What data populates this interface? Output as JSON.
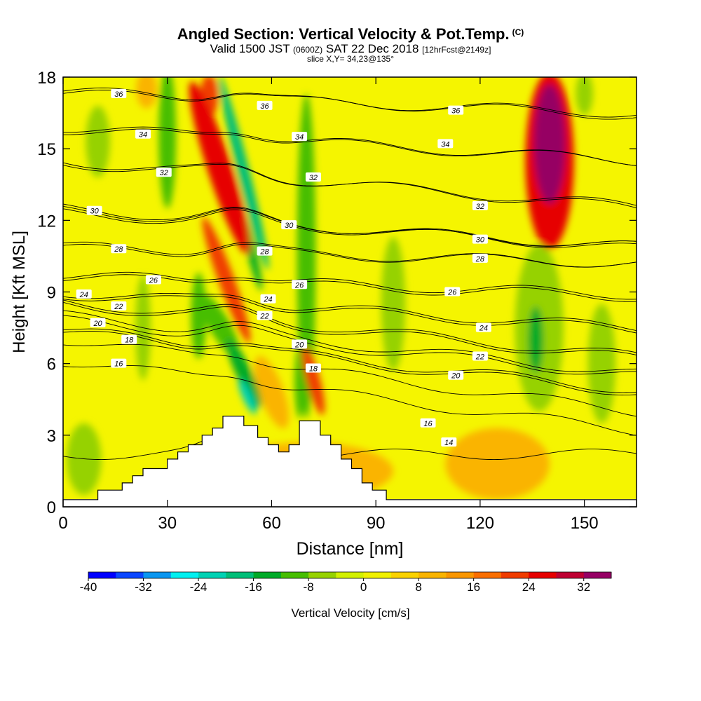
{
  "header": {
    "title": "Angled Section: Vertical Velocity & Pot.Temp.",
    "title_tag": "(C)",
    "valid_prefix": "Valid 1500 JST",
    "valid_zulu": "(0600Z)",
    "valid_date": "SAT 22 Dec 2018",
    "forecast": "[12hrFcst@2149z]",
    "slice": "slice X,Y= 34,23@135°"
  },
  "chart_data": {
    "type": "heatmap",
    "xlabel": "Distance [nm]",
    "ylabel": "Height [Kft MSL]",
    "xlim": [
      0,
      165
    ],
    "ylim": [
      0,
      18
    ],
    "x_ticks": [
      0,
      30,
      60,
      90,
      120,
      150
    ],
    "y_ticks": [
      0,
      3,
      6,
      9,
      12,
      15,
      18
    ],
    "grid": false,
    "field_label": "Vertical Velocity [cm/s]",
    "background_color": "#f5f500",
    "colorbar": {
      "min": -40,
      "max": 36,
      "step": 4,
      "tick_labels": [
        -40,
        -32,
        -24,
        -16,
        -8,
        0,
        8,
        16,
        24,
        32
      ],
      "colors": [
        "#0000ff",
        "#0a46ff",
        "#0a96f0",
        "#00f0f0",
        "#00d2b4",
        "#00be78",
        "#00aa28",
        "#46be00",
        "#96d200",
        "#d2f000",
        "#f0f000",
        "#fad200",
        "#fab400",
        "#fa9600",
        "#fa6e00",
        "#f03c00",
        "#e60000",
        "#be0032",
        "#960064"
      ]
    },
    "terrain_kft": [
      [
        0,
        0.3
      ],
      [
        10,
        0.3
      ],
      [
        10,
        0.7
      ],
      [
        17,
        0.7
      ],
      [
        17,
        1.0
      ],
      [
        20,
        1.0
      ],
      [
        20,
        1.3
      ],
      [
        23,
        1.3
      ],
      [
        23,
        1.6
      ],
      [
        30,
        1.6
      ],
      [
        30,
        2.0
      ],
      [
        33,
        2.0
      ],
      [
        33,
        2.3
      ],
      [
        36,
        2.3
      ],
      [
        36,
        2.6
      ],
      [
        40,
        2.6
      ],
      [
        40,
        3.0
      ],
      [
        43,
        3.0
      ],
      [
        43,
        3.3
      ],
      [
        46,
        3.3
      ],
      [
        46,
        3.8
      ],
      [
        52,
        3.8
      ],
      [
        52,
        3.4
      ],
      [
        56,
        3.4
      ],
      [
        56,
        2.9
      ],
      [
        59,
        2.9
      ],
      [
        59,
        2.6
      ],
      [
        62,
        2.6
      ],
      [
        62,
        2.3
      ],
      [
        65,
        2.3
      ],
      [
        65,
        2.6
      ],
      [
        68,
        2.6
      ],
      [
        68,
        3.6
      ],
      [
        74,
        3.6
      ],
      [
        74,
        3.0
      ],
      [
        77,
        3.0
      ],
      [
        77,
        2.6
      ],
      [
        80,
        2.6
      ],
      [
        80,
        2.0
      ],
      [
        83,
        2.0
      ],
      [
        83,
        1.6
      ],
      [
        86,
        1.6
      ],
      [
        86,
        1.0
      ],
      [
        89,
        1.0
      ],
      [
        89,
        0.7
      ],
      [
        93,
        0.7
      ],
      [
        93,
        0.3
      ],
      [
        165,
        0.3
      ]
    ],
    "velocity_features": [
      {
        "x": 45,
        "y": 14.2,
        "rx": 3.5,
        "ry": 3.8,
        "rot": -18,
        "value": 26
      },
      {
        "x": 47,
        "y": 9.5,
        "rx": 2.3,
        "ry": 2.8,
        "rot": -20,
        "value": 20
      },
      {
        "x": 42,
        "y": 17.2,
        "rx": 2.6,
        "ry": 0.9,
        "rot": 0,
        "value": 22
      },
      {
        "x": 52,
        "y": 14.0,
        "rx": 1.7,
        "ry": 4.2,
        "rot": -14,
        "value": -20
      },
      {
        "x": 54,
        "y": 10.8,
        "rx": 1.3,
        "ry": 1.8,
        "rot": -14,
        "value": -16
      },
      {
        "x": 52,
        "y": 5.6,
        "rx": 2.2,
        "ry": 1.6,
        "rot": -25,
        "value": -16
      },
      {
        "x": 53,
        "y": 4.6,
        "rx": 1.3,
        "ry": 0.8,
        "rot": -25,
        "value": -24
      },
      {
        "x": 60,
        "y": 4.8,
        "rx": 3.5,
        "ry": 1.6,
        "rot": -20,
        "value": 8
      },
      {
        "x": 72,
        "y": 5.3,
        "rx": 2.0,
        "ry": 1.5,
        "rot": -15,
        "value": 20
      },
      {
        "x": 70,
        "y": 10.5,
        "rx": 2.7,
        "ry": 6.8,
        "rot": 0,
        "value": -10
      },
      {
        "x": 68,
        "y": 5.2,
        "rx": 1.4,
        "ry": 1.5,
        "rot": 0,
        "value": -12
      },
      {
        "x": 45,
        "y": 7.6,
        "rx": 3.0,
        "ry": 1.5,
        "rot": -30,
        "value": -12
      },
      {
        "x": 39,
        "y": 8.0,
        "rx": 2.2,
        "ry": 1.8,
        "rot": 0,
        "value": -10
      },
      {
        "x": 30,
        "y": 15.5,
        "rx": 2.5,
        "ry": 3.0,
        "rot": 0,
        "value": -12
      },
      {
        "x": 23,
        "y": 7.5,
        "rx": 2.2,
        "ry": 2.2,
        "rot": 0,
        "value": -8
      },
      {
        "x": 10,
        "y": 15.3,
        "rx": 3.5,
        "ry": 1.5,
        "rot": 0,
        "value": -6
      },
      {
        "x": 95,
        "y": 8.5,
        "rx": 3.5,
        "ry": 2.8,
        "rot": 0,
        "value": -6
      },
      {
        "x": 137,
        "y": 7.5,
        "rx": 7.0,
        "ry": 3.5,
        "rot": 0,
        "value": -8
      },
      {
        "x": 136,
        "y": 7.0,
        "rx": 2.2,
        "ry": 1.4,
        "rot": 0,
        "value": -16
      },
      {
        "x": 155,
        "y": 6.0,
        "rx": 4.0,
        "ry": 2.5,
        "rot": 0,
        "value": -8
      },
      {
        "x": 6,
        "y": 2.0,
        "rx": 5.0,
        "ry": 1.5,
        "rot": 0,
        "value": -6
      },
      {
        "x": 150,
        "y": 17.3,
        "rx": 2.5,
        "ry": 0.9,
        "rot": 0,
        "value": -8
      },
      {
        "x": 140,
        "y": 14.5,
        "rx": 7.0,
        "ry": 3.7,
        "rot": 0,
        "value": 24
      },
      {
        "x": 140,
        "y": 15.2,
        "rx": 4.5,
        "ry": 2.5,
        "rot": 0,
        "value": 32
      },
      {
        "x": 24,
        "y": 17.5,
        "rx": 3.0,
        "ry": 0.8,
        "rot": 0,
        "value": 10
      },
      {
        "x": 70,
        "y": 1.5,
        "rx": 25.0,
        "ry": 1.2,
        "rot": 0,
        "value": 8
      },
      {
        "x": 125,
        "y": 1.8,
        "rx": 15.0,
        "ry": 1.5,
        "rot": 0,
        "value": 8
      }
    ],
    "theta_contours": [
      {
        "value": 14,
        "y_left": 2.2,
        "y_right": 2.2,
        "label_x": 111,
        "label_y": 2.7
      },
      {
        "value": 16,
        "y_left": 6.1,
        "y_right": 3.2,
        "label_x": 16,
        "label_y": 6.0
      },
      {
        "value": 16,
        "y_left": 7.0,
        "y_right": 4.0,
        "label_x": 105,
        "label_y": 3.5
      },
      {
        "value": 18,
        "y_left": 7.3,
        "y_right": 4.8,
        "label_x": 19,
        "label_y": 7.0
      },
      {
        "value": 18,
        "y_left": 7.4,
        "y_right": 4.9,
        "label_x": 72,
        "label_y": 5.8
      },
      {
        "value": 20,
        "y_left": 7.8,
        "y_right": 5.5,
        "label_x": 10,
        "label_y": 7.7
      },
      {
        "value": 20,
        "y_left": 8.0,
        "y_right": 5.6,
        "label_x": 68,
        "label_y": 6.8
      },
      {
        "value": 20,
        "y_left": 8.0,
        "y_right": 5.6,
        "label_x": 113,
        "label_y": 5.5
      },
      {
        "value": 22,
        "y_left": 8.5,
        "y_right": 6.2,
        "label_x": 16,
        "label_y": 8.4
      },
      {
        "value": 22,
        "y_left": 8.5,
        "y_right": 6.3,
        "label_x": 58,
        "label_y": 8.0
      },
      {
        "value": 22,
        "y_left": 8.6,
        "y_right": 6.3,
        "label_x": 120,
        "label_y": 6.3
      },
      {
        "value": 24,
        "y_left": 8.9,
        "y_right": 7.4,
        "label_x": 6,
        "label_y": 8.9
      },
      {
        "value": 24,
        "y_left": 8.9,
        "y_right": 7.4,
        "label_x": 59,
        "label_y": 8.7
      },
      {
        "value": 24,
        "y_left": 9.0,
        "y_right": 7.5,
        "label_x": 121,
        "label_y": 7.5
      },
      {
        "value": 26,
        "y_left": 9.6,
        "y_right": 8.8,
        "label_x": 26,
        "label_y": 9.5
      },
      {
        "value": 26,
        "y_left": 9.6,
        "y_right": 8.8,
        "label_x": 68,
        "label_y": 9.3
      },
      {
        "value": 26,
        "y_left": 9.7,
        "y_right": 8.9,
        "label_x": 112,
        "label_y": 9.0
      },
      {
        "value": 28,
        "y_left": 10.8,
        "y_right": 10.2,
        "label_x": 16,
        "label_y": 10.8
      },
      {
        "value": 28,
        "y_left": 10.8,
        "y_right": 10.2,
        "label_x": 58,
        "label_y": 10.7
      },
      {
        "value": 28,
        "y_left": 10.9,
        "y_right": 10.2,
        "label_x": 120,
        "label_y": 10.4
      },
      {
        "value": 30,
        "y_left": 12.5,
        "y_right": 10.8,
        "label_x": 9,
        "label_y": 12.4
      },
      {
        "value": 30,
        "y_left": 12.4,
        "y_right": 10.9,
        "label_x": 65,
        "label_y": 11.8
      },
      {
        "value": 30,
        "y_left": 12.3,
        "y_right": 10.9,
        "label_x": 120,
        "label_y": 11.2
      },
      {
        "value": 32,
        "y_left": 14.5,
        "y_right": 12.5,
        "label_x": 29,
        "label_y": 14.0
      },
      {
        "value": 32,
        "y_left": 14.5,
        "y_right": 12.6,
        "label_x": 72,
        "label_y": 13.8
      },
      {
        "value": 32,
        "y_left": 14.4,
        "y_right": 12.6,
        "label_x": 120,
        "label_y": 12.6
      },
      {
        "value": 34,
        "y_left": 15.9,
        "y_right": 14.5,
        "label_x": 23,
        "label_y": 15.6
      },
      {
        "value": 34,
        "y_left": 15.9,
        "y_right": 14.5,
        "label_x": 68,
        "label_y": 15.5
      },
      {
        "value": 34,
        "y_left": 15.8,
        "y_right": 14.5,
        "label_x": 110,
        "label_y": 15.2
      },
      {
        "value": 36,
        "y_left": 17.4,
        "y_right": 16.4,
        "label_x": 16,
        "label_y": 17.3
      },
      {
        "value": 36,
        "y_left": 17.4,
        "y_right": 16.5,
        "label_x": 58,
        "label_y": 16.8
      },
      {
        "value": 36,
        "y_left": 17.3,
        "y_right": 16.5,
        "label_x": 113,
        "label_y": 16.6
      }
    ]
  }
}
